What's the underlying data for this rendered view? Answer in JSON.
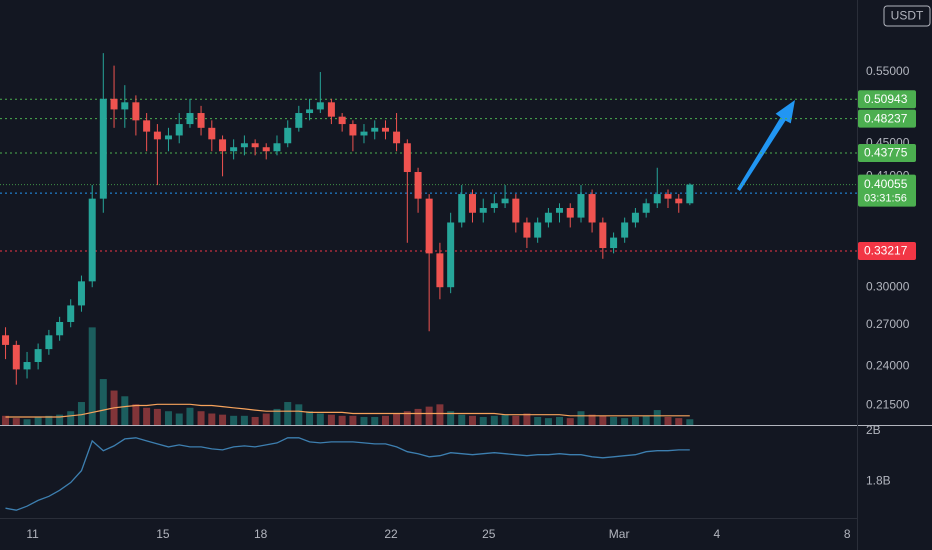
{
  "chart_data": {
    "type": "candlestick",
    "currency": "USDT",
    "countdown": "03:31:56",
    "x": [
      10.17,
      10.5,
      10.83,
      11.17,
      11.5,
      11.83,
      12.17,
      12.5,
      12.83,
      13.17,
      13.5,
      13.83,
      14.17,
      14.5,
      14.83,
      15.17,
      15.5,
      15.83,
      16.17,
      16.5,
      16.83,
      17.17,
      17.5,
      17.83,
      18.17,
      18.5,
      18.83,
      19.17,
      19.5,
      19.83,
      20.17,
      20.5,
      20.83,
      21.17,
      21.5,
      21.83,
      22.17,
      22.5,
      22.83,
      23.17,
      23.5,
      23.83,
      24.17,
      24.5,
      24.83,
      25.17,
      25.5,
      25.83,
      26.17,
      26.5,
      26.83,
      27.17,
      27.5,
      27.83,
      28.17,
      28.5,
      28.83,
      29.17,
      29.5,
      29.83,
      30.17,
      30.5,
      30.83,
      31.17
    ],
    "open": [
      0.262,
      0.255,
      0.238,
      0.243,
      0.252,
      0.262,
      0.272,
      0.285,
      0.305,
      0.385,
      0.51,
      0.495,
      0.505,
      0.48,
      0.465,
      0.455,
      0.46,
      0.475,
      0.49,
      0.47,
      0.455,
      0.44,
      0.445,
      0.45,
      0.445,
      0.44,
      0.45,
      0.47,
      0.49,
      0.495,
      0.505,
      0.485,
      0.475,
      0.46,
      0.465,
      0.47,
      0.465,
      0.45,
      0.415,
      0.385,
      0.33,
      0.3,
      0.36,
      0.39,
      0.37,
      0.375,
      0.38,
      0.385,
      0.36,
      0.345,
      0.36,
      0.37,
      0.375,
      0.365,
      0.39,
      0.36,
      0.335,
      0.345,
      0.36,
      0.37,
      0.38,
      0.39,
      0.385,
      0.38
    ],
    "high": [
      0.268,
      0.258,
      0.25,
      0.256,
      0.266,
      0.276,
      0.29,
      0.31,
      0.4,
      0.58,
      0.56,
      0.53,
      0.515,
      0.49,
      0.475,
      0.47,
      0.49,
      0.51,
      0.5,
      0.48,
      0.46,
      0.455,
      0.46,
      0.455,
      0.45,
      0.46,
      0.48,
      0.5,
      0.51,
      0.55,
      0.51,
      0.49,
      0.48,
      0.475,
      0.48,
      0.48,
      0.49,
      0.455,
      0.42,
      0.39,
      0.34,
      0.37,
      0.4,
      0.395,
      0.385,
      0.39,
      0.4,
      0.39,
      0.365,
      0.365,
      0.375,
      0.38,
      0.38,
      0.4,
      0.395,
      0.365,
      0.35,
      0.365,
      0.375,
      0.385,
      0.42,
      0.395,
      0.39,
      0.402
    ],
    "low": [
      0.245,
      0.228,
      0.232,
      0.238,
      0.248,
      0.258,
      0.268,
      0.28,
      0.3,
      0.37,
      0.47,
      0.47,
      0.46,
      0.44,
      0.4,
      0.44,
      0.45,
      0.47,
      0.46,
      0.44,
      0.41,
      0.43,
      0.435,
      0.435,
      0.43,
      0.435,
      0.445,
      0.465,
      0.48,
      0.49,
      0.475,
      0.465,
      0.44,
      0.45,
      0.455,
      0.455,
      0.44,
      0.34,
      0.37,
      0.265,
      0.29,
      0.295,
      0.355,
      0.36,
      0.36,
      0.37,
      0.375,
      0.35,
      0.335,
      0.34,
      0.355,
      0.36,
      0.355,
      0.36,
      0.35,
      0.325,
      0.33,
      0.34,
      0.355,
      0.365,
      0.375,
      0.375,
      0.37,
      0.378
    ],
    "close": [
      0.255,
      0.238,
      0.243,
      0.252,
      0.262,
      0.272,
      0.285,
      0.305,
      0.385,
      0.51,
      0.495,
      0.505,
      0.48,
      0.465,
      0.455,
      0.46,
      0.475,
      0.49,
      0.47,
      0.455,
      0.44,
      0.445,
      0.45,
      0.445,
      0.44,
      0.45,
      0.47,
      0.49,
      0.495,
      0.505,
      0.485,
      0.475,
      0.46,
      0.465,
      0.47,
      0.465,
      0.45,
      0.415,
      0.385,
      0.33,
      0.3,
      0.36,
      0.39,
      0.37,
      0.375,
      0.38,
      0.385,
      0.36,
      0.345,
      0.36,
      0.37,
      0.375,
      0.365,
      0.39,
      0.36,
      0.335,
      0.345,
      0.36,
      0.37,
      0.38,
      0.39,
      0.385,
      0.38,
      0.40055
    ],
    "volume": [
      8,
      6,
      5,
      7,
      8,
      9,
      12,
      20,
      85,
      40,
      30,
      25,
      18,
      15,
      14,
      12,
      10,
      15,
      12,
      10,
      9,
      8,
      8,
      7,
      10,
      14,
      20,
      18,
      12,
      10,
      9,
      8,
      8,
      7,
      7,
      8,
      10,
      12,
      14,
      16,
      18,
      12,
      9,
      8,
      7,
      8,
      9,
      8,
      10,
      7,
      6,
      7,
      6,
      12,
      9,
      8,
      7,
      6,
      7,
      8,
      13,
      7,
      6,
      5
    ],
    "volume_ma": [
      7,
      7,
      7,
      7,
      7,
      7,
      8,
      9,
      11,
      13,
      15,
      16,
      17,
      17,
      18,
      18,
      18,
      18,
      17,
      17,
      16,
      15,
      14,
      13,
      12,
      12,
      12,
      12,
      11,
      11,
      11,
      11,
      10,
      10,
      10,
      10,
      10,
      10,
      10,
      10,
      10,
      10,
      10,
      10,
      10,
      10,
      9,
      9,
      9,
      9,
      9,
      9,
      8,
      8,
      8,
      8,
      8,
      8,
      8,
      8,
      8,
      8,
      8,
      8
    ],
    "volume_ylim": [
      0,
      370
    ],
    "indicator": [
      1.694,
      1.686,
      1.702,
      1.725,
      1.741,
      1.765,
      1.796,
      1.843,
      1.961,
      1.922,
      1.941,
      1.969,
      1.973,
      1.961,
      1.949,
      1.937,
      1.945,
      1.937,
      1.937,
      1.929,
      1.925,
      1.937,
      1.941,
      1.937,
      1.945,
      1.953,
      1.973,
      1.973,
      1.957,
      1.953,
      1.957,
      1.957,
      1.957,
      1.953,
      1.949,
      1.949,
      1.937,
      1.918,
      1.91,
      1.898,
      1.902,
      1.914,
      1.91,
      1.906,
      1.91,
      1.914,
      1.91,
      1.906,
      1.902,
      1.906,
      1.906,
      1.91,
      1.906,
      1.906,
      1.898,
      1.894,
      1.898,
      1.902,
      1.906,
      1.918,
      1.922,
      1.922,
      1.925,
      1.925
    ],
    "indicator_ylim": [
      1.655,
      2.02
    ],
    "indicator_ticks": [
      {
        "value": 2,
        "label": "2B"
      },
      {
        "value": 1.8,
        "label": "1.8B"
      }
    ],
    "xlim": [
      10,
      36.3
    ],
    "xticks": [
      11,
      15,
      18,
      22,
      25,
      {
        "value": 29,
        "label": "Mar"
      },
      {
        "value": 32,
        "label": "4"
      },
      {
        "value": 36,
        "label": "8"
      }
    ],
    "ylim": [
      0.2035,
      0.6737
    ],
    "log_y": true,
    "yticks": [
      {
        "value": 0.55,
        "label": "0.55000"
      },
      {
        "value": 0.45,
        "label": "0.45000"
      },
      {
        "value": 0.41,
        "label": "0.41000"
      },
      {
        "value": 0.3,
        "label": "0.30000"
      },
      {
        "value": 0.27,
        "label": "0.27000"
      },
      {
        "value": 0.24,
        "label": "0.24000"
      },
      {
        "value": 0.215,
        "label": "0.21500"
      }
    ],
    "levels": [
      {
        "value": 0.50943,
        "color": "#4caf50"
      },
      {
        "value": 0.48237,
        "color": "#4caf50"
      },
      {
        "value": 0.43775,
        "color": "#4caf50"
      },
      {
        "value": 0.39103,
        "color": "#2196f3"
      },
      {
        "value": 0.33217,
        "color": "#f23645"
      }
    ],
    "up_color": "#26a69a",
    "down_color": "#ef5350",
    "last_color": "#4caf50",
    "ma_color": "#f7a35c",
    "indicator_color": "#3d7fb0"
  }
}
